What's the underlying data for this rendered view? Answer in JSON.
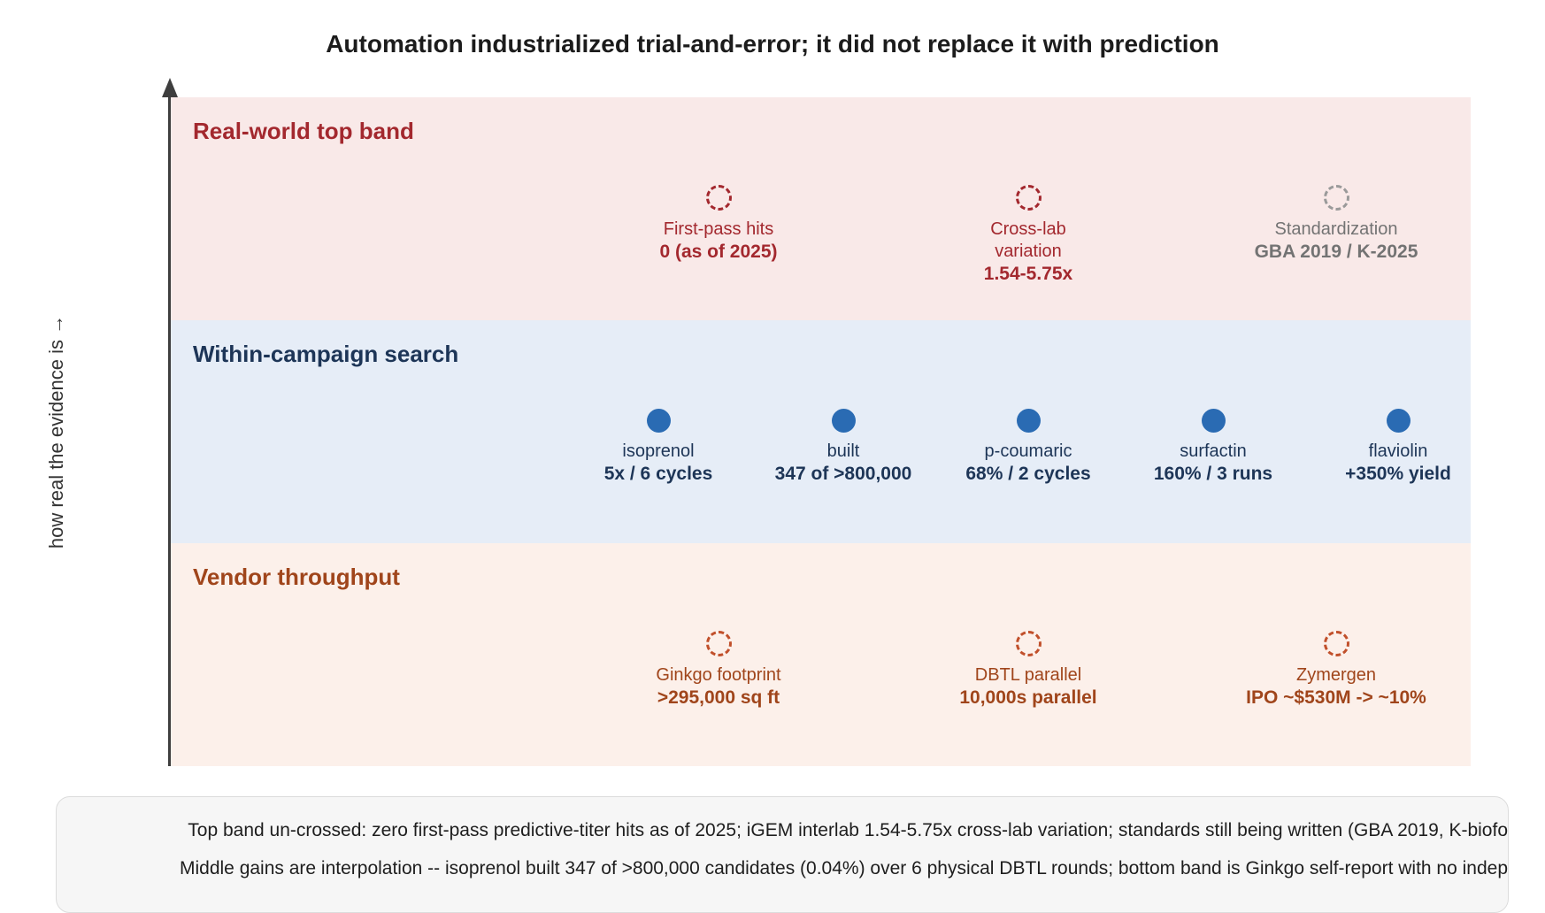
{
  "title": "Automation industrialized trial-and-error; it did not replace it with prediction",
  "y_axis_label": "how real the evidence is →",
  "bands": {
    "top": {
      "label": "Real-world top band",
      "color": "#a3282e",
      "markers": [
        {
          "name": "First-pass hits",
          "value": "0 (as of 2025)",
          "style": "dashed-open"
        },
        {
          "name": "Cross-lab variation",
          "value": "1.54-5.75x",
          "style": "dashed-open"
        },
        {
          "name": "Standardization",
          "value": "GBA 2019 / K-2025",
          "style": "dashed-open-grey"
        }
      ]
    },
    "middle": {
      "label": "Within-campaign search",
      "color": "#1d3557",
      "markers": [
        {
          "name": "isoprenol",
          "value": "5x / 6 cycles",
          "style": "solid"
        },
        {
          "name": "built",
          "value": "347 of >800,000",
          "style": "solid"
        },
        {
          "name": "p-coumaric",
          "value": "68% / 2 cycles",
          "style": "solid"
        },
        {
          "name": "surfactin",
          "value": "160% / 3 runs",
          "style": "solid"
        },
        {
          "name": "flaviolin",
          "value": "+350% yield",
          "style": "solid"
        }
      ]
    },
    "bottom": {
      "label": "Vendor throughput",
      "color": "#a0451b",
      "markers": [
        {
          "name": "Ginkgo footprint",
          "value": ">295,000 sq ft",
          "style": "dashed-open"
        },
        {
          "name": "DBTL parallel",
          "value": "10,000s parallel",
          "style": "dashed-open"
        },
        {
          "name": "Zymergen",
          "value": "IPO ~$530M -> ~10%",
          "style": "dashed-open"
        }
      ]
    }
  },
  "notes": [
    "Top band un-crossed: zero first-pass predictive-titer hits as of 2025; iGEM interlab 1.54-5.75x cross-lab variation; standards still being written (GBA 2019, K-biofo",
    "Middle gains are interpolation -- isoprenol built 347 of >800,000 candidates (0.04%) over 6 physical DBTL rounds; bottom band is Ginkgo self-report with no indep"
  ]
}
